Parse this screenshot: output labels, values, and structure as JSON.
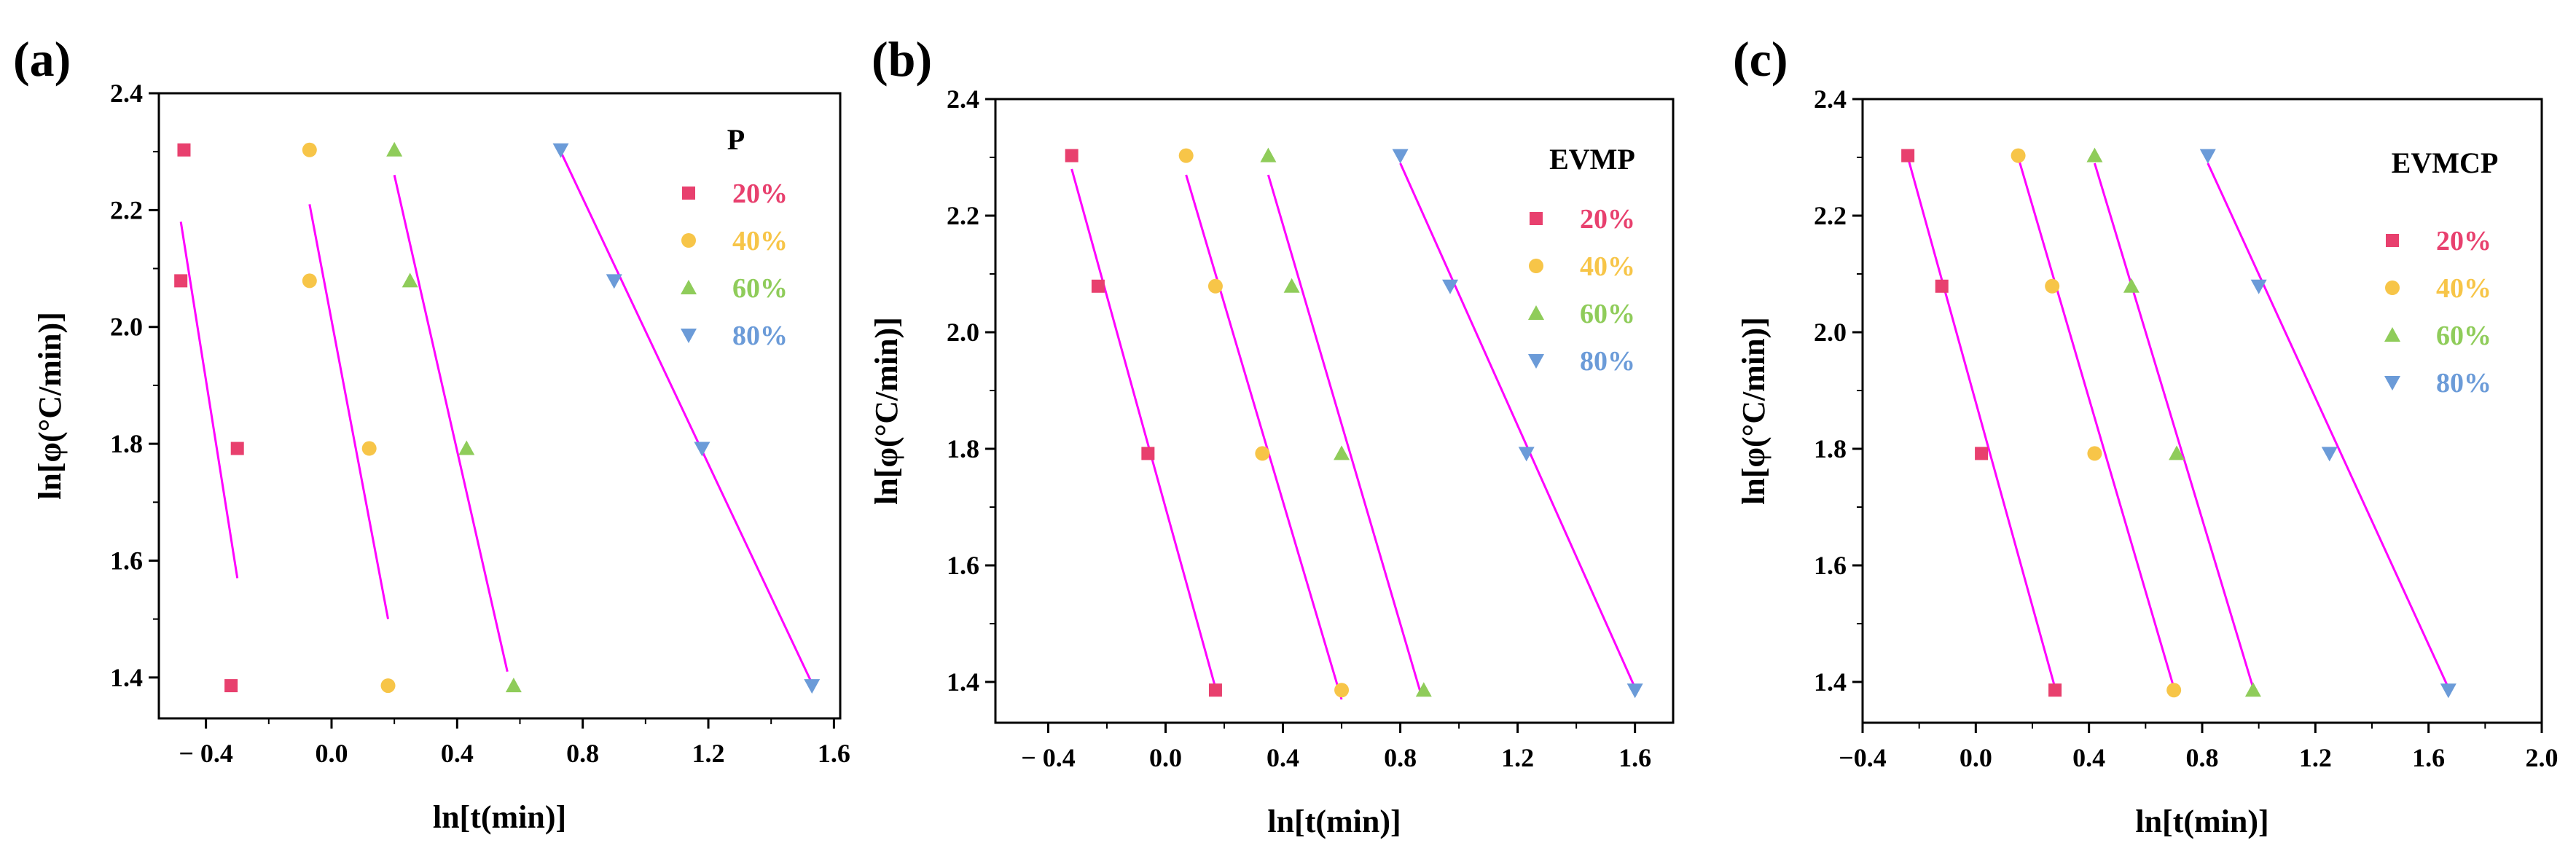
{
  "colors": {
    "fit_line": "#ff00ff",
    "s20": "#e8406e",
    "s40": "#f7c548",
    "s60": "#8fcc5a",
    "s80": "#6b9bd8"
  },
  "marker_shapes": {
    "20%": "square",
    "40%": "circle",
    "60%": "triangle-up",
    "80%": "triangle-down"
  },
  "chart_data": [
    {
      "panel_label": "(a)",
      "type": "scatter",
      "title": "P",
      "xlabel": "ln[t(min)]",
      "ylabel": "ln[φ(°C/min)]",
      "xlim": [
        -0.55,
        1.62
      ],
      "ylim": [
        1.33,
        2.4
      ],
      "xticks": [
        -0.4,
        0.0,
        0.4,
        0.8,
        1.2,
        1.6
      ],
      "xtick_labels": [
        "− 0.4",
        "0.0",
        "0.4",
        "0.8",
        "1.2",
        "1.6"
      ],
      "yticks": [
        1.4,
        1.6,
        1.8,
        2.0,
        2.2,
        2.4
      ],
      "ytick_labels": [
        "1.4",
        "1.6",
        "1.8",
        "2.0",
        "2.2",
        "2.4"
      ],
      "legend_title": "P",
      "series": [
        {
          "name": "20%",
          "x": [
            -0.47,
            -0.48,
            -0.3,
            -0.32
          ],
          "y": [
            2.303,
            2.079,
            1.792,
            1.386
          ],
          "fit": {
            "x": [
              -0.48,
              -0.3
            ],
            "y": [
              2.18,
              1.57
            ]
          }
        },
        {
          "name": "40%",
          "x": [
            -0.07,
            -0.07,
            0.12,
            0.18
          ],
          "y": [
            2.303,
            2.079,
            1.792,
            1.386
          ],
          "fit": {
            "x": [
              -0.07,
              0.18
            ],
            "y": [
              2.21,
              1.5
            ]
          }
        },
        {
          "name": "60%",
          "x": [
            0.2,
            0.25,
            0.43,
            0.58
          ],
          "y": [
            2.303,
            2.079,
            1.792,
            1.386
          ],
          "fit": {
            "x": [
              0.2,
              0.56
            ],
            "y": [
              2.26,
              1.41
            ]
          }
        },
        {
          "name": "80%",
          "x": [
            0.73,
            0.9,
            1.18,
            1.53
          ],
          "y": [
            2.303,
            2.079,
            1.792,
            1.386
          ],
          "fit": {
            "x": [
              0.73,
              1.53
            ],
            "y": [
              2.3,
              1.39
            ]
          }
        }
      ]
    },
    {
      "panel_label": "(b)",
      "type": "scatter",
      "title": "EVMP",
      "xlabel": "ln[t(min)]",
      "ylabel": "ln[φ(°C/min)]",
      "xlim": [
        -0.58,
        1.73
      ],
      "ylim": [
        1.33,
        2.4
      ],
      "xticks": [
        -0.4,
        0.0,
        0.4,
        0.8,
        1.2,
        1.6
      ],
      "xtick_labels": [
        "− 0.4",
        "0.0",
        "0.4",
        "0.8",
        "1.2",
        "1.6"
      ],
      "yticks": [
        1.4,
        1.6,
        1.8,
        2.0,
        2.2,
        2.4
      ],
      "ytick_labels": [
        "1.4",
        "1.6",
        "1.8",
        "2.0",
        "2.2",
        "2.4"
      ],
      "legend_title": "EVMP",
      "series": [
        {
          "name": "20%",
          "x": [
            -0.32,
            -0.23,
            -0.06,
            0.17
          ],
          "y": [
            2.303,
            2.079,
            1.792,
            1.386
          ],
          "fit": {
            "x": [
              -0.32,
              0.17
            ],
            "y": [
              2.28,
              1.39
            ]
          }
        },
        {
          "name": "40%",
          "x": [
            0.07,
            0.17,
            0.33,
            0.6
          ],
          "y": [
            2.303,
            2.079,
            1.792,
            1.386
          ],
          "fit": {
            "x": [
              0.07,
              0.6
            ],
            "y": [
              2.27,
              1.37
            ]
          }
        },
        {
          "name": "60%",
          "x": [
            0.35,
            0.43,
            0.6,
            0.88
          ],
          "y": [
            2.303,
            2.079,
            1.792,
            1.386
          ],
          "fit": {
            "x": [
              0.35,
              0.87
            ],
            "y": [
              2.27,
              1.38
            ]
          }
        },
        {
          "name": "80%",
          "x": [
            0.8,
            0.97,
            1.23,
            1.6
          ],
          "y": [
            2.303,
            2.079,
            1.792,
            1.386
          ],
          "fit": {
            "x": [
              0.8,
              1.6
            ],
            "y": [
              2.29,
              1.39
            ]
          }
        }
      ]
    },
    {
      "panel_label": "(c)",
      "type": "scatter",
      "title": "EVMCP",
      "xlabel": "ln[t(min)]",
      "ylabel": "ln[φ(°C/min)]",
      "xlim": [
        -0.4,
        2.0
      ],
      "ylim": [
        1.33,
        2.4
      ],
      "xticks": [
        -0.4,
        0.0,
        0.4,
        0.8,
        1.2,
        1.6,
        2.0
      ],
      "xtick_labels": [
        "−0.4",
        "0.0",
        "0.4",
        "0.8",
        "1.2",
        "1.6",
        "2.0"
      ],
      "yticks": [
        1.4,
        1.6,
        1.8,
        2.0,
        2.2,
        2.4
      ],
      "ytick_labels": [
        "1.4",
        "1.6",
        "1.8",
        "2.0",
        "2.2",
        "2.4"
      ],
      "legend_title": "EVMCP",
      "series": [
        {
          "name": "20%",
          "x": [
            -0.24,
            -0.12,
            0.02,
            0.28
          ],
          "y": [
            2.303,
            2.079,
            1.792,
            1.386
          ],
          "fit": {
            "x": [
              -0.24,
              0.28
            ],
            "y": [
              2.3,
              1.39
            ]
          }
        },
        {
          "name": "40%",
          "x": [
            0.15,
            0.27,
            0.42,
            0.7
          ],
          "y": [
            2.303,
            2.079,
            1.792,
            1.386
          ],
          "fit": {
            "x": [
              0.15,
              0.7
            ],
            "y": [
              2.3,
              1.39
            ]
          }
        },
        {
          "name": "60%",
          "x": [
            0.42,
            0.55,
            0.71,
            0.98
          ],
          "y": [
            2.303,
            2.079,
            1.792,
            1.386
          ],
          "fit": {
            "x": [
              0.42,
              0.98
            ],
            "y": [
              2.29,
              1.39
            ]
          }
        },
        {
          "name": "80%",
          "x": [
            0.82,
            1.0,
            1.25,
            1.67
          ],
          "y": [
            2.303,
            2.079,
            1.792,
            1.386
          ],
          "fit": {
            "x": [
              0.82,
              1.67
            ],
            "y": [
              2.29,
              1.39
            ]
          }
        }
      ]
    }
  ]
}
